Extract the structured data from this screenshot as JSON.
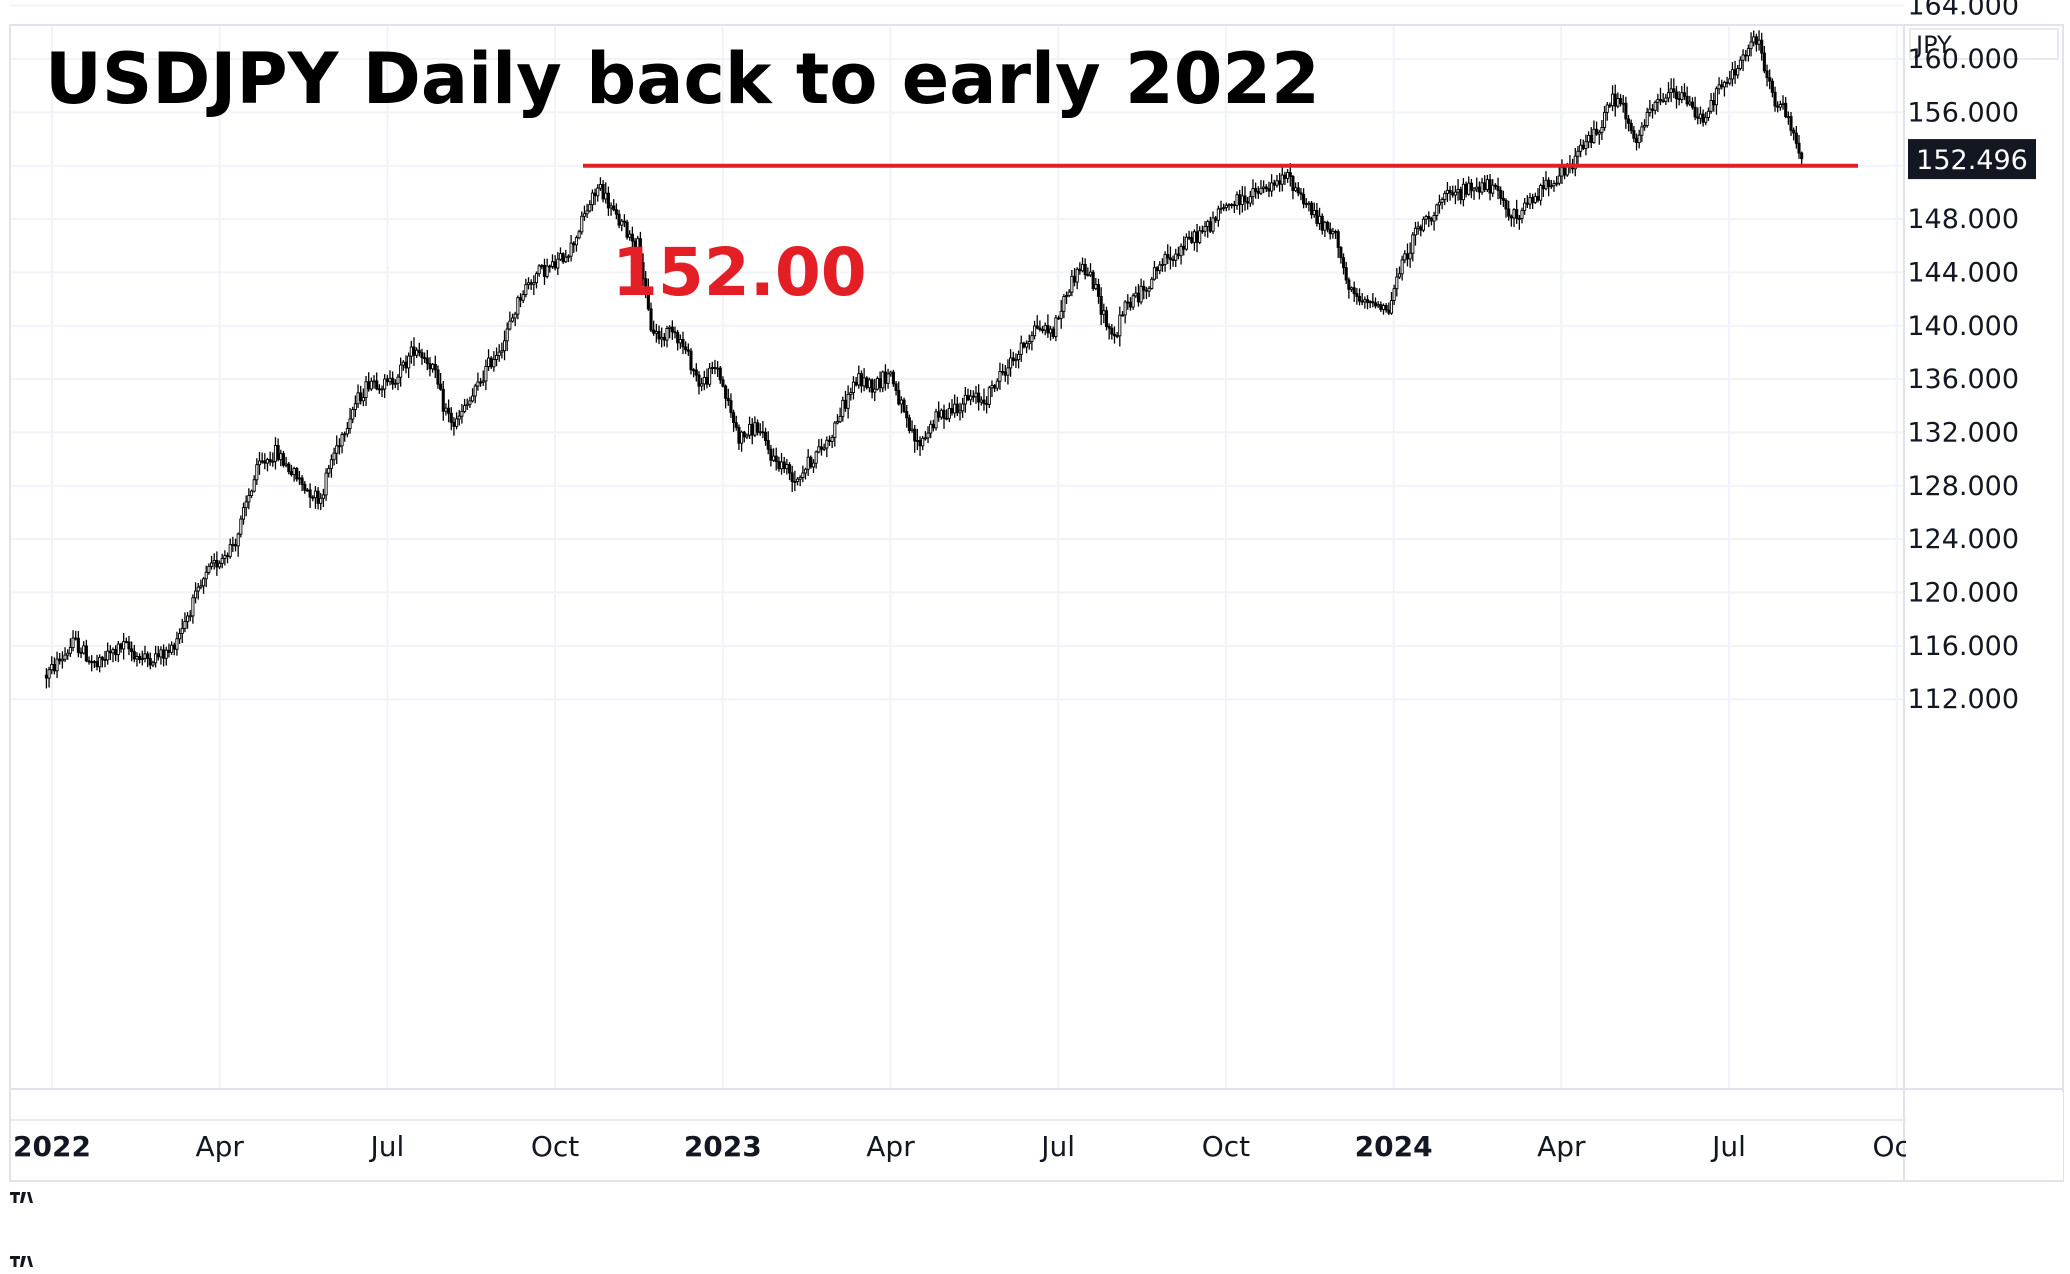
{
  "chart_data": {
    "type": "candlestick",
    "title": "USDJPY Daily back to early 2022",
    "currency_label": "JPY",
    "last_price_label": "152.496",
    "last_price": 152.496,
    "annotation": {
      "text": "152.00",
      "value": 152.0,
      "color": "#e31e24"
    },
    "ylim": [
      108.5,
      168.0
    ],
    "y_ticks": [
      "164.000",
      "160.000",
      "156.000",
      "152.000",
      "148.000",
      "144.000",
      "140.000",
      "136.000",
      "132.000",
      "128.000",
      "124.000",
      "120.000",
      "116.000",
      "112.000"
    ],
    "y_tick_values": [
      164,
      160,
      156,
      152,
      148,
      144,
      140,
      136,
      132,
      128,
      124,
      120,
      116,
      112
    ],
    "x_ticks": [
      {
        "label": "2022",
        "bold": true,
        "month_index": 0
      },
      {
        "label": "Apr",
        "bold": false,
        "month_index": 3
      },
      {
        "label": "Jul",
        "bold": false,
        "month_index": 6
      },
      {
        "label": "Oct",
        "bold": false,
        "month_index": 9
      },
      {
        "label": "2023",
        "bold": true,
        "month_index": 12
      },
      {
        "label": "Apr",
        "bold": false,
        "month_index": 15
      },
      {
        "label": "Jul",
        "bold": false,
        "month_index": 18
      },
      {
        "label": "Oct",
        "bold": false,
        "month_index": 21
      },
      {
        "label": "2024",
        "bold": true,
        "month_index": 24
      },
      {
        "label": "Apr",
        "bold": false,
        "month_index": 27
      },
      {
        "label": "Jul",
        "bold": false,
        "month_index": 30
      },
      {
        "label": "Oct",
        "bold": false,
        "month_index": 33
      }
    ],
    "series_path": [
      [
        -0.1,
        113.8
      ],
      [
        0.2,
        115.2
      ],
      [
        0.4,
        116.3
      ],
      [
        0.8,
        114.4
      ],
      [
        1.0,
        115.3
      ],
      [
        1.3,
        116.0
      ],
      [
        1.6,
        115.0
      ],
      [
        1.9,
        115.2
      ],
      [
        2.1,
        115.5
      ],
      [
        2.5,
        119.0
      ],
      [
        2.8,
        121.5
      ],
      [
        3.0,
        122.5
      ],
      [
        3.3,
        124.0
      ],
      [
        3.5,
        127.0
      ],
      [
        3.7,
        129.5
      ],
      [
        4.0,
        130.5
      ],
      [
        4.3,
        129.0
      ],
      [
        4.5,
        128.0
      ],
      [
        4.8,
        127.0
      ],
      [
        5.0,
        130.0
      ],
      [
        5.4,
        134.0
      ],
      [
        5.7,
        136.0
      ],
      [
        6.0,
        135.5
      ],
      [
        6.3,
        137.0
      ],
      [
        6.5,
        138.5
      ],
      [
        6.8,
        137.0
      ],
      [
        7.0,
        134.0
      ],
      [
        7.2,
        132.5
      ],
      [
        7.5,
        134.5
      ],
      [
        7.8,
        137.0
      ],
      [
        8.1,
        139.0
      ],
      [
        8.4,
        142.5
      ],
      [
        8.7,
        144.0
      ],
      [
        9.0,
        144.5
      ],
      [
        9.3,
        146.0
      ],
      [
        9.6,
        149.0
      ],
      [
        9.8,
        150.5
      ],
      [
        10.1,
        148.0
      ],
      [
        10.3,
        147.0
      ],
      [
        10.5,
        146.0
      ],
      [
        10.7,
        140.0
      ],
      [
        10.9,
        139.0
      ],
      [
        11.1,
        140.0
      ],
      [
        11.4,
        137.5
      ],
      [
        11.6,
        135.5
      ],
      [
        11.9,
        137.0
      ],
      [
        12.1,
        134.0
      ],
      [
        12.3,
        131.5
      ],
      [
        12.6,
        132.5
      ],
      [
        12.9,
        130.0
      ],
      [
        13.1,
        129.5
      ],
      [
        13.3,
        128.5
      ],
      [
        13.6,
        130.0
      ],
      [
        13.9,
        131.5
      ],
      [
        14.1,
        133.5
      ],
      [
        14.4,
        136.0
      ],
      [
        14.7,
        135.5
      ],
      [
        15.0,
        136.5
      ],
      [
        15.3,
        132.5
      ],
      [
        15.5,
        131.0
      ],
      [
        15.8,
        133.0
      ],
      [
        16.1,
        133.8
      ],
      [
        16.4,
        134.5
      ],
      [
        16.7,
        134.5
      ],
      [
        17.0,
        136.5
      ],
      [
        17.3,
        138.0
      ],
      [
        17.6,
        140.0
      ],
      [
        17.9,
        139.5
      ],
      [
        18.2,
        143.0
      ],
      [
        18.4,
        144.5
      ],
      [
        18.6,
        143.5
      ],
      [
        18.8,
        141.0
      ],
      [
        19.0,
        139.0
      ],
      [
        19.2,
        141.5
      ],
      [
        19.5,
        142.5
      ],
      [
        19.8,
        144.5
      ],
      [
        20.1,
        145.5
      ],
      [
        20.4,
        146.5
      ],
      [
        20.7,
        147.5
      ],
      [
        21.0,
        149.0
      ],
      [
        21.3,
        149.5
      ],
      [
        21.6,
        150.0
      ],
      [
        21.9,
        150.5
      ],
      [
        22.1,
        151.2
      ],
      [
        22.4,
        149.5
      ],
      [
        22.7,
        147.5
      ],
      [
        23.0,
        146.5
      ],
      [
        23.2,
        142.5
      ],
      [
        23.5,
        141.5
      ],
      [
        23.7,
        142.0
      ],
      [
        23.9,
        141.0
      ],
      [
        24.1,
        144.0
      ],
      [
        24.4,
        147.0
      ],
      [
        24.7,
        148.5
      ],
      [
        24.9,
        149.5
      ],
      [
        25.2,
        150.0
      ],
      [
        25.5,
        150.5
      ],
      [
        25.7,
        150.5
      ],
      [
        26.0,
        149.0
      ],
      [
        26.2,
        148.0
      ],
      [
        26.5,
        149.5
      ],
      [
        26.8,
        151.0
      ],
      [
        27.1,
        151.5
      ],
      [
        27.4,
        153.5
      ],
      [
        27.7,
        155.0
      ],
      [
        27.9,
        157.0
      ],
      [
        28.1,
        156.5
      ],
      [
        28.3,
        153.5
      ],
      [
        28.6,
        156.0
      ],
      [
        28.9,
        157.5
      ],
      [
        29.2,
        157.0
      ],
      [
        29.5,
        155.5
      ],
      [
        29.8,
        157.5
      ],
      [
        30.1,
        159.0
      ],
      [
        30.3,
        160.5
      ],
      [
        30.5,
        161.5
      ],
      [
        30.6,
        160.0
      ],
      [
        30.8,
        157.0
      ],
      [
        31.0,
        156.0
      ],
      [
        31.2,
        153.5
      ],
      [
        31.3,
        152.3
      ]
    ]
  }
}
